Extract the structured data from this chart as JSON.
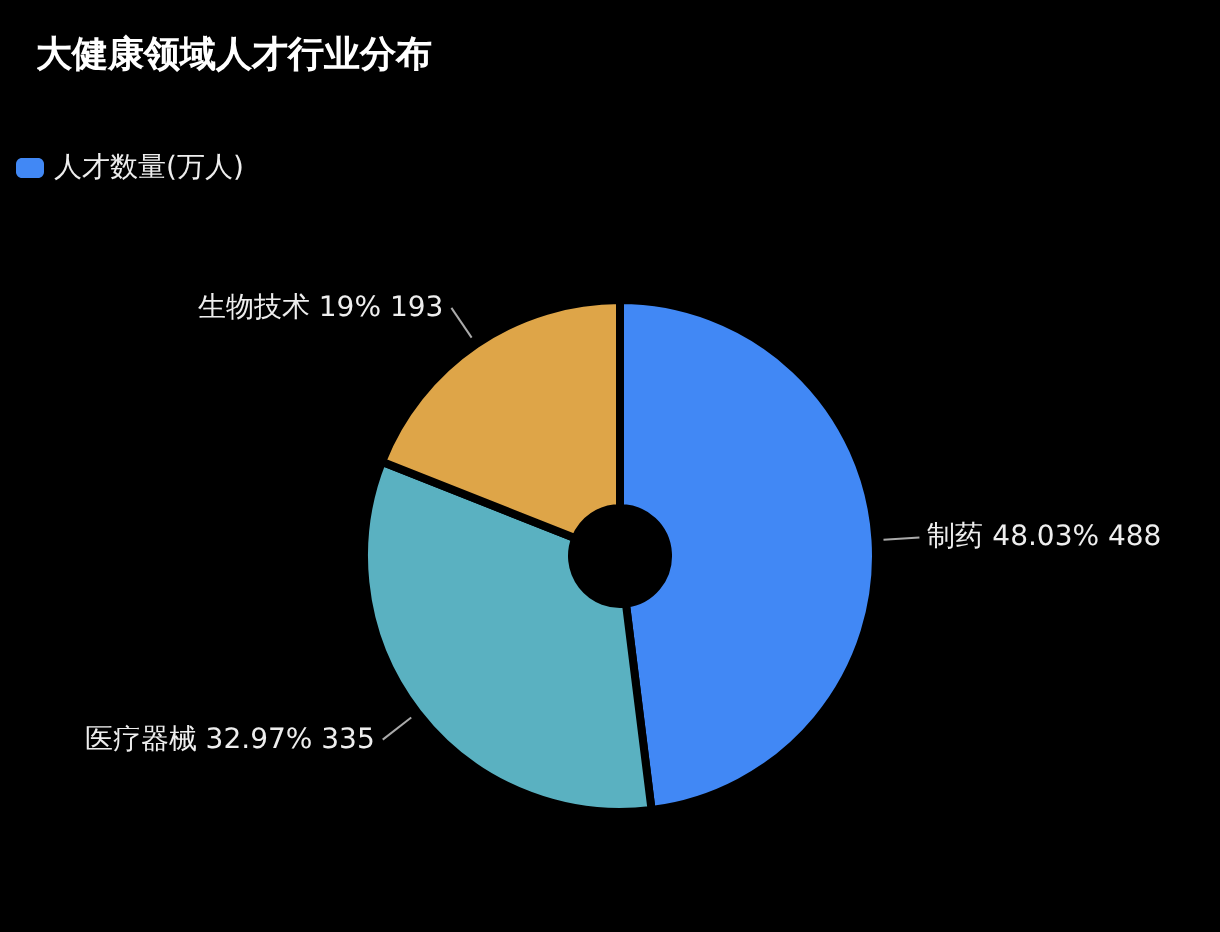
{
  "chart_data": {
    "type": "donut",
    "title": "大健康领域人才行业分布",
    "categories": [
      "制药",
      "医疗器械",
      "生物技术"
    ],
    "colors": [
      "#4188f5",
      "#5ab1c1",
      "#dea548"
    ],
    "series": [
      {
        "name": "人才数量(万人)",
        "values": [
          488,
          335,
          193
        ],
        "value_labels": [
          "48.03% 488",
          "32.97% 335",
          "19% 193"
        ]
      }
    ],
    "legend": "top left"
  }
}
